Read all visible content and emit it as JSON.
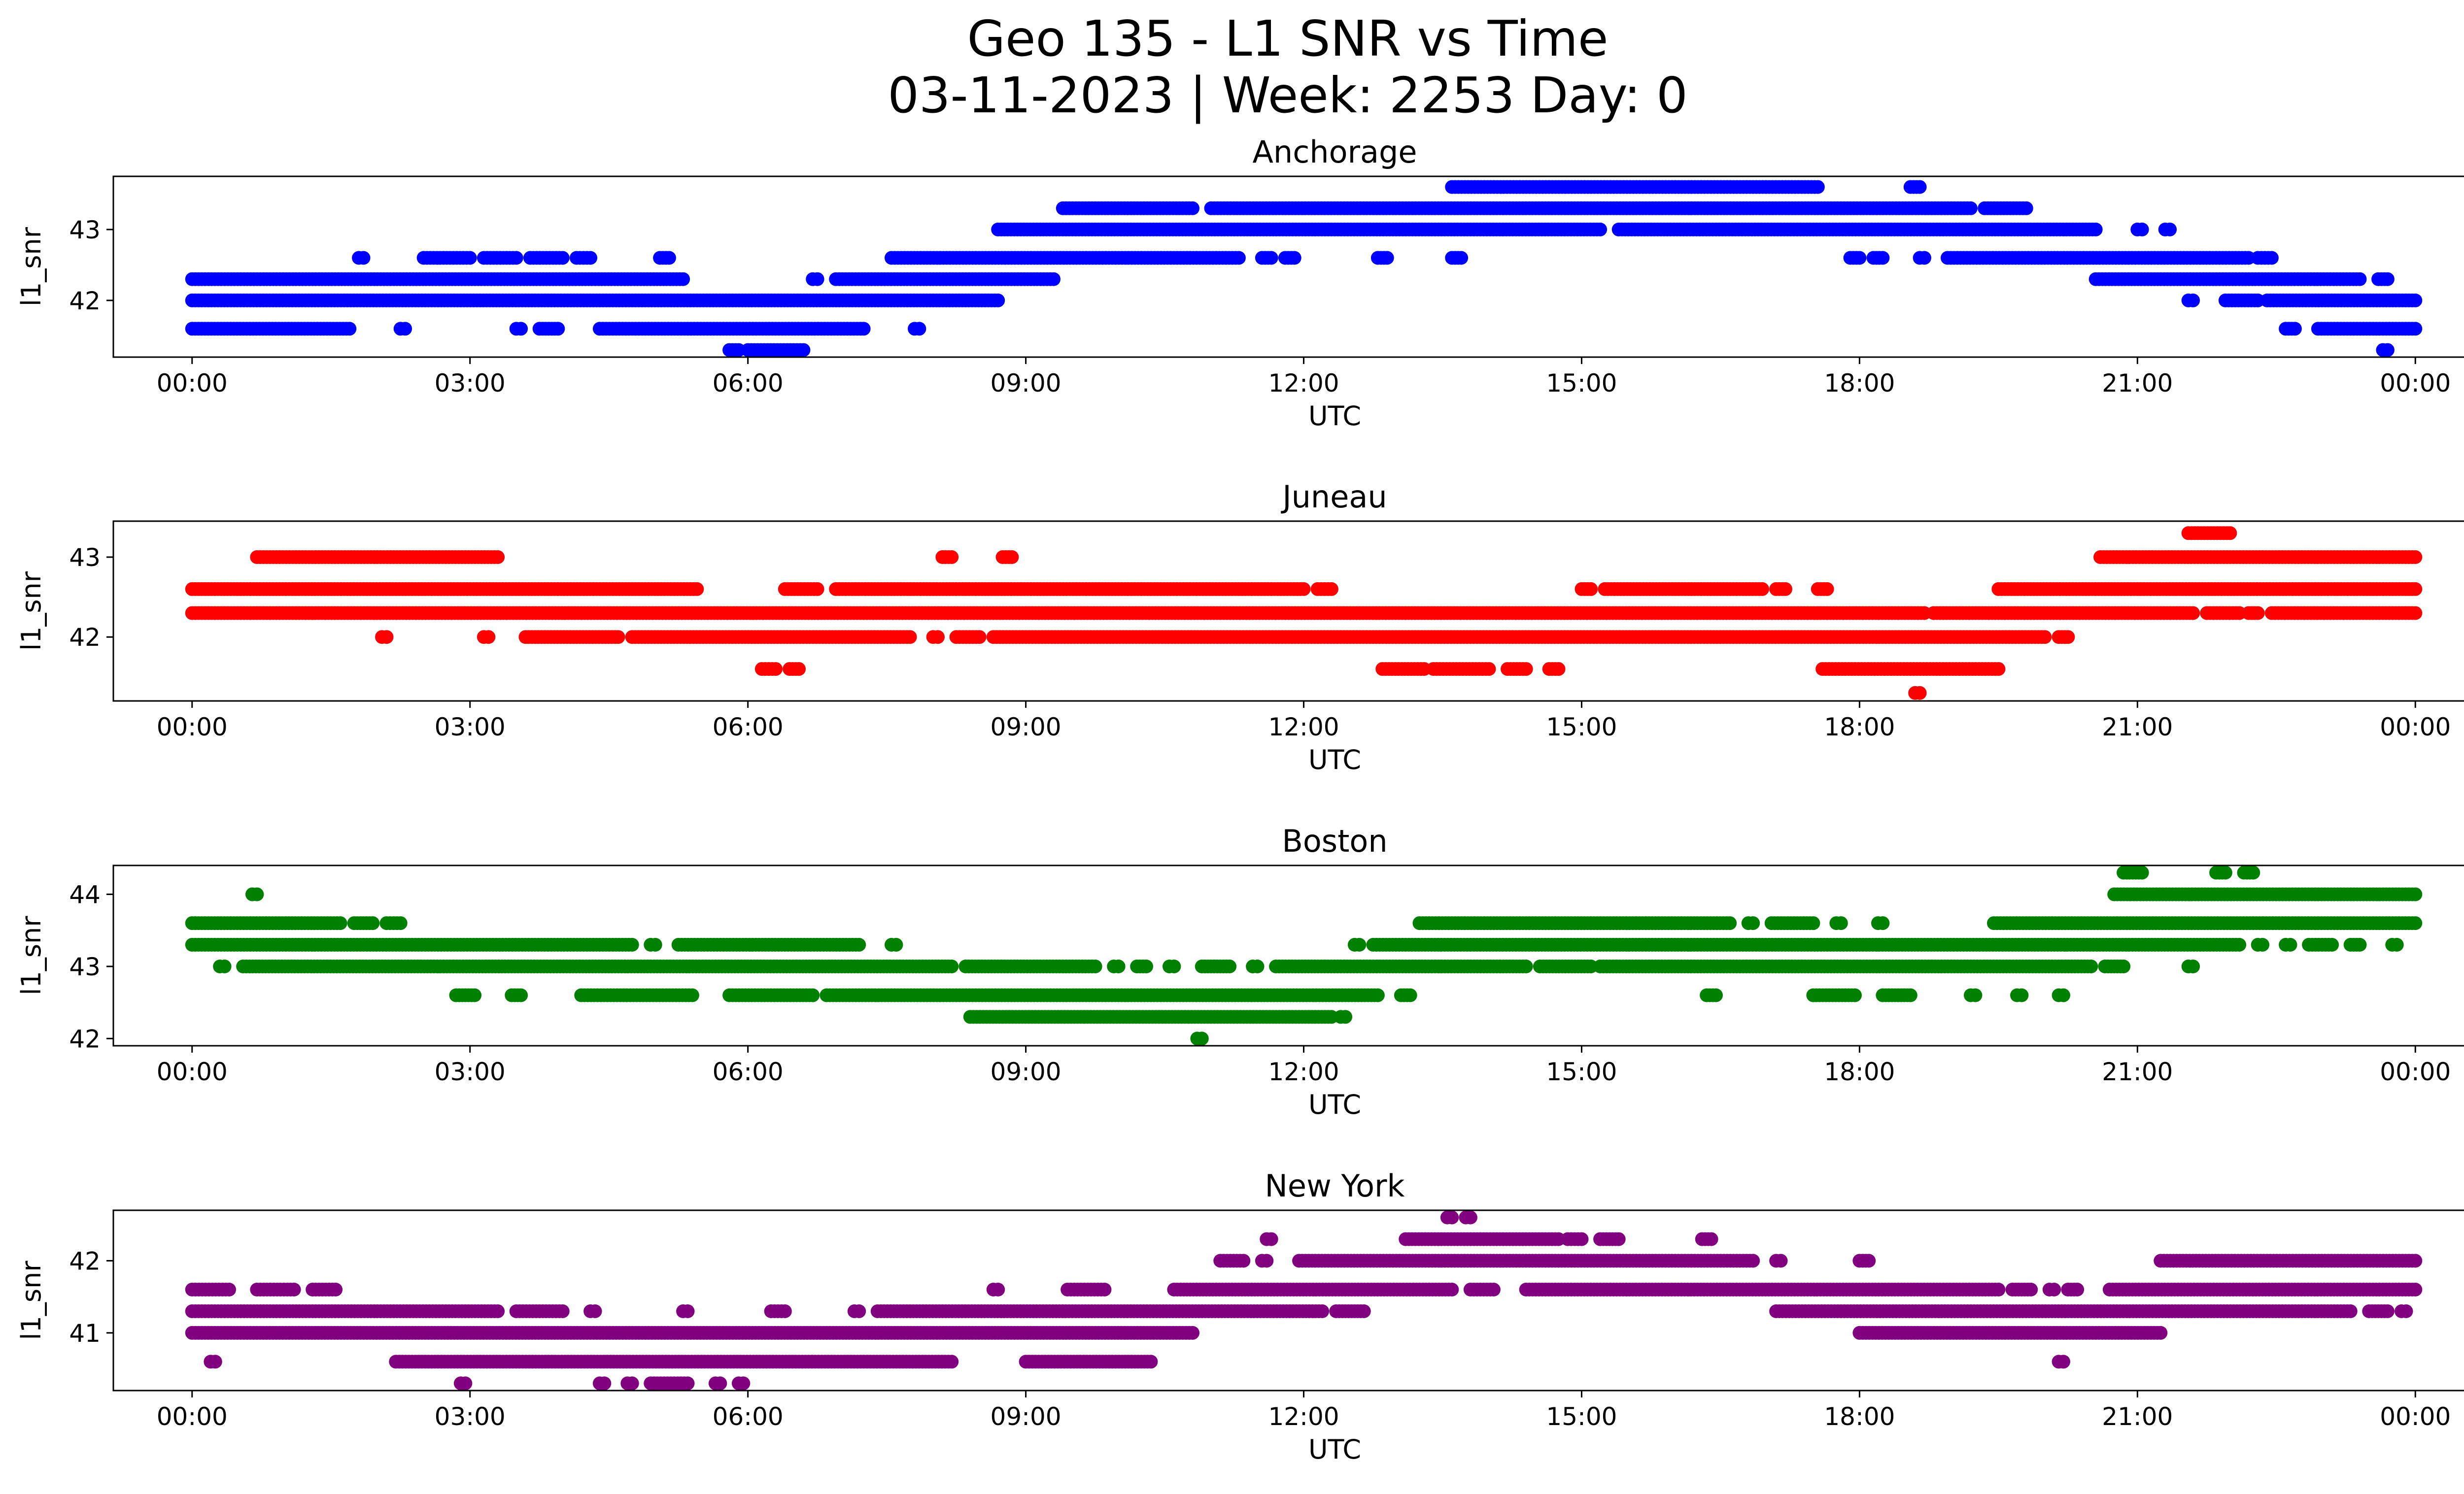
{
  "figure": {
    "title_line1": "Geo 135 - L1 SNR vs Time",
    "title_line2": "03-11-2023 | Week: 2253 Day: 0"
  },
  "chart_data": [
    {
      "type": "scatter",
      "title": "Anchorage",
      "xlabel": "UTC",
      "ylabel": "l1_snr",
      "color": "#0000ff",
      "xlim_hours": [
        -0.85,
        25.52
      ],
      "ylim": [
        41.2,
        43.75
      ],
      "x_ticks": [
        "00:00",
        "03:00",
        "06:00",
        "09:00",
        "12:00",
        "15:00",
        "18:00",
        "21:00",
        "00:00"
      ],
      "y_ticks": [
        42,
        43
      ],
      "levels": [
        {
          "y": 41.3,
          "segments": [
            [
              5.8,
              5.9
            ],
            [
              6.0,
              6.6
            ],
            [
              23.65,
              23.7
            ]
          ]
        },
        {
          "y": 41.6,
          "segments": [
            [
              0.0,
              1.7
            ],
            [
              2.25,
              2.3
            ],
            [
              3.5,
              3.55
            ],
            [
              3.75,
              3.95
            ],
            [
              4.4,
              7.25
            ],
            [
              7.8,
              7.85
            ],
            [
              22.6,
              22.7
            ],
            [
              22.95,
              24.0
            ]
          ]
        },
        {
          "y": 42.0,
          "segments": [
            [
              0.0,
              8.7
            ],
            [
              21.55,
              21.6
            ],
            [
              21.95,
              22.3
            ],
            [
              22.4,
              24.0
            ]
          ]
        },
        {
          "y": 42.3,
          "segments": [
            [
              0.0,
              5.3
            ],
            [
              6.7,
              6.75
            ],
            [
              6.95,
              9.3
            ],
            [
              20.55,
              23.4
            ],
            [
              23.6,
              23.7
            ]
          ]
        },
        {
          "y": 42.6,
          "segments": [
            [
              1.8,
              1.85
            ],
            [
              2.5,
              3.0
            ],
            [
              3.15,
              3.5
            ],
            [
              3.65,
              4.0
            ],
            [
              4.15,
              4.3
            ],
            [
              5.05,
              5.15
            ],
            [
              7.55,
              11.3
            ],
            [
              11.55,
              11.65
            ],
            [
              11.8,
              11.9
            ],
            [
              12.8,
              12.9
            ],
            [
              13.6,
              13.7
            ],
            [
              17.9,
              18.0
            ],
            [
              18.15,
              18.25
            ],
            [
              18.65,
              18.7
            ],
            [
              18.95,
              22.2
            ],
            [
              22.3,
              22.45
            ]
          ]
        },
        {
          "y": 43.0,
          "segments": [
            [
              8.7,
              15.2
            ],
            [
              15.4,
              20.55
            ],
            [
              21.0,
              21.05
            ],
            [
              21.3,
              21.35
            ]
          ]
        },
        {
          "y": 43.3,
          "segments": [
            [
              9.4,
              10.8
            ],
            [
              11.0,
              19.2
            ],
            [
              19.35,
              19.8
            ]
          ]
        },
        {
          "y": 43.6,
          "segments": [
            [
              13.6,
              17.55
            ],
            [
              18.55,
              18.65
            ]
          ]
        }
      ]
    },
    {
      "type": "scatter",
      "title": "Juneau",
      "xlabel": "UTC",
      "ylabel": "l1_snr",
      "color": "#ff0000",
      "xlim_hours": [
        -0.85,
        25.52
      ],
      "ylim": [
        41.2,
        43.45
      ],
      "x_ticks": [
        "00:00",
        "03:00",
        "06:00",
        "09:00",
        "12:00",
        "15:00",
        "18:00",
        "21:00",
        "00:00"
      ],
      "y_ticks": [
        42,
        43
      ],
      "levels": [
        {
          "y": 41.3,
          "segments": [
            [
              18.6,
              18.65
            ]
          ]
        },
        {
          "y": 41.6,
          "segments": [
            [
              6.15,
              6.3
            ],
            [
              6.45,
              6.55
            ],
            [
              12.85,
              13.3
            ],
            [
              13.4,
              14.0
            ],
            [
              14.2,
              14.4
            ],
            [
              14.65,
              14.75
            ],
            [
              17.6,
              19.5
            ]
          ]
        },
        {
          "y": 42.0,
          "segments": [
            [
              2.05,
              2.1
            ],
            [
              3.15,
              3.2
            ],
            [
              3.6,
              4.6
            ],
            [
              4.75,
              7.75
            ],
            [
              8.0,
              8.05
            ],
            [
              8.25,
              8.5
            ],
            [
              8.65,
              20.0
            ],
            [
              20.15,
              20.25
            ]
          ]
        },
        {
          "y": 42.3,
          "segments": [
            [
              0.0,
              18.7
            ],
            [
              18.8,
              21.6
            ],
            [
              21.75,
              22.1
            ],
            [
              22.2,
              22.3
            ],
            [
              22.45,
              24.0
            ]
          ]
        },
        {
          "y": 42.6,
          "segments": [
            [
              0.0,
              5.45
            ],
            [
              6.4,
              6.75
            ],
            [
              6.95,
              12.0
            ],
            [
              12.15,
              12.3
            ],
            [
              15.0,
              15.1
            ],
            [
              15.25,
              16.95
            ],
            [
              17.1,
              17.2
            ],
            [
              17.55,
              17.65
            ],
            [
              19.5,
              24.0
            ]
          ]
        },
        {
          "y": 43.0,
          "segments": [
            [
              0.7,
              3.3
            ],
            [
              8.1,
              8.2
            ],
            [
              8.75,
              8.85
            ],
            [
              20.6,
              24.0
            ]
          ]
        },
        {
          "y": 43.3,
          "segments": [
            [
              21.55,
              22.0
            ]
          ]
        }
      ]
    },
    {
      "type": "scatter",
      "title": "Boston",
      "xlabel": "UTC",
      "ylabel": "l1_snr",
      "color": "#008000",
      "xlim_hours": [
        -0.85,
        25.52
      ],
      "ylim": [
        41.9,
        44.4
      ],
      "x_ticks": [
        "00:00",
        "03:00",
        "06:00",
        "09:00",
        "12:00",
        "15:00",
        "18:00",
        "21:00",
        "00:00"
      ],
      "y_ticks": [
        42,
        43,
        44
      ],
      "levels": [
        {
          "y": 42.0,
          "segments": [
            [
              10.85,
              10.9
            ]
          ]
        },
        {
          "y": 42.3,
          "segments": [
            [
              8.4,
              12.3
            ],
            [
              12.4,
              12.45
            ]
          ]
        },
        {
          "y": 42.6,
          "segments": [
            [
              2.85,
              3.05
            ],
            [
              3.45,
              3.55
            ],
            [
              4.2,
              5.4
            ],
            [
              5.8,
              6.7
            ],
            [
              6.85,
              12.8
            ],
            [
              13.05,
              13.15
            ],
            [
              16.35,
              16.45
            ],
            [
              17.5,
              17.95
            ],
            [
              18.25,
              18.55
            ],
            [
              19.2,
              19.25
            ],
            [
              19.7,
              19.75
            ],
            [
              20.15,
              20.2
            ]
          ]
        },
        {
          "y": 43.0,
          "segments": [
            [
              0.3,
              0.35
            ],
            [
              0.55,
              8.2
            ],
            [
              8.35,
              9.75
            ],
            [
              9.95,
              10.0
            ],
            [
              10.2,
              10.3
            ],
            [
              10.55,
              10.6
            ],
            [
              10.9,
              11.2
            ],
            [
              11.45,
              11.5
            ],
            [
              11.7,
              14.4
            ],
            [
              14.55,
              15.1
            ],
            [
              15.2,
              20.5
            ],
            [
              20.65,
              20.85
            ],
            [
              21.55,
              21.6
            ]
          ]
        },
        {
          "y": 43.3,
          "segments": [
            [
              0.0,
              4.75
            ],
            [
              4.95,
              5.0
            ],
            [
              5.25,
              7.2
            ],
            [
              7.55,
              7.6
            ],
            [
              12.55,
              12.6
            ],
            [
              12.75,
              22.1
            ],
            [
              22.3,
              22.35
            ],
            [
              22.6,
              22.65
            ],
            [
              22.85,
              23.1
            ],
            [
              23.3,
              23.4
            ],
            [
              23.75,
              23.8
            ]
          ]
        },
        {
          "y": 43.6,
          "segments": [
            [
              0.0,
              1.6
            ],
            [
              1.75,
              1.95
            ],
            [
              2.1,
              2.25
            ],
            [
              13.25,
              16.6
            ],
            [
              16.8,
              16.85
            ],
            [
              17.05,
              17.5
            ],
            [
              17.75,
              17.8
            ],
            [
              18.2,
              18.25
            ],
            [
              19.45,
              24.0
            ]
          ]
        },
        {
          "y": 44.0,
          "segments": [
            [
              0.65,
              0.7
            ],
            [
              20.75,
              24.0
            ]
          ]
        },
        {
          "y": 44.3,
          "segments": [
            [
              20.85,
              21.05
            ],
            [
              21.85,
              21.95
            ],
            [
              22.15,
              22.25
            ]
          ]
        }
      ]
    },
    {
      "type": "scatter",
      "title": "New York",
      "xlabel": "UTC",
      "ylabel": "l1_snr",
      "color": "#800080",
      "xlim_hours": [
        -0.85,
        25.52
      ],
      "ylim": [
        40.2,
        42.7
      ],
      "x_ticks": [
        "00:00",
        "03:00",
        "06:00",
        "09:00",
        "12:00",
        "15:00",
        "18:00",
        "21:00",
        "00:00"
      ],
      "y_ticks": [
        41,
        42
      ],
      "levels": [
        {
          "y": 40.3,
          "segments": [
            [
              2.9,
              2.95
            ],
            [
              4.4,
              4.45
            ],
            [
              4.7,
              4.75
            ],
            [
              4.95,
              5.35
            ],
            [
              5.65,
              5.7
            ],
            [
              5.9,
              5.95
            ]
          ]
        },
        {
          "y": 40.6,
          "segments": [
            [
              0.2,
              0.25
            ],
            [
              2.2,
              8.2
            ],
            [
              9.0,
              10.35
            ],
            [
              20.15,
              20.2
            ]
          ]
        },
        {
          "y": 41.0,
          "segments": [
            [
              0.0,
              10.8
            ],
            [
              18.0,
              21.25
            ]
          ]
        },
        {
          "y": 41.3,
          "segments": [
            [
              0.0,
              3.3
            ],
            [
              3.5,
              4.0
            ],
            [
              4.3,
              4.35
            ],
            [
              5.3,
              5.35
            ],
            [
              6.25,
              6.4
            ],
            [
              7.15,
              7.2
            ],
            [
              7.4,
              12.2
            ],
            [
              12.35,
              12.65
            ],
            [
              17.1,
              23.3
            ],
            [
              23.5,
              23.7
            ],
            [
              23.85,
              23.9
            ]
          ]
        },
        {
          "y": 41.6,
          "segments": [
            [
              0.0,
              0.4
            ],
            [
              0.7,
              1.1
            ],
            [
              1.3,
              1.55
            ],
            [
              8.65,
              8.7
            ],
            [
              9.45,
              9.85
            ],
            [
              10.6,
              13.6
            ],
            [
              13.8,
              14.05
            ],
            [
              14.4,
              19.5
            ],
            [
              19.65,
              19.85
            ],
            [
              20.05,
              20.1
            ],
            [
              20.25,
              20.35
            ],
            [
              20.7,
              24.0
            ]
          ]
        },
        {
          "y": 42.0,
          "segments": [
            [
              11.1,
              11.35
            ],
            [
              11.55,
              11.6
            ],
            [
              11.95,
              16.85
            ],
            [
              17.1,
              17.15
            ],
            [
              18.0,
              18.1
            ],
            [
              21.25,
              24.0
            ]
          ]
        },
        {
          "y": 42.3,
          "segments": [
            [
              11.6,
              11.65
            ],
            [
              13.1,
              14.75
            ],
            [
              14.85,
              15.0
            ],
            [
              15.2,
              15.4
            ],
            [
              16.3,
              16.4
            ]
          ]
        },
        {
          "y": 42.6,
          "segments": [
            [
              13.55,
              13.6
            ],
            [
              13.75,
              13.8
            ]
          ]
        }
      ]
    }
  ]
}
